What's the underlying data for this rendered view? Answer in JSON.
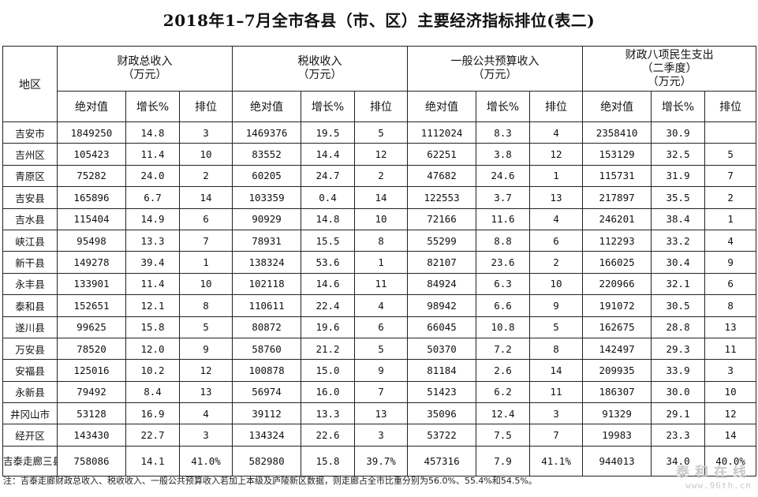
{
  "title": "2018年1–7月全市各县（市、区）主要经济指标排位(表二)",
  "header": {
    "region": "地区",
    "groups": [
      {
        "line1": "财政总收入",
        "line2": "（万元）",
        "line3": ""
      },
      {
        "line1": "税收收入",
        "line2": "（万元）",
        "line3": ""
      },
      {
        "line1": "一般公共预算收入",
        "line2": "（万元）",
        "line3": ""
      },
      {
        "line1": "财政八项民生支出",
        "line2": "（二季度）",
        "line3": "（万元）"
      }
    ],
    "sub": {
      "abs": "绝对值",
      "growth": "增长%",
      "rank": "排位"
    }
  },
  "rows": [
    {
      "region": "吉安市",
      "v": [
        "1849250",
        "14.8",
        "3",
        "1469376",
        "19.5",
        "5",
        "1112024",
        "8.3",
        "4",
        "2358410",
        "30.9",
        ""
      ]
    },
    {
      "region": "吉州区",
      "v": [
        "105423",
        "11.4",
        "10",
        "83552",
        "14.4",
        "12",
        "62251",
        "3.8",
        "12",
        "153129",
        "32.5",
        "5"
      ]
    },
    {
      "region": "青原区",
      "v": [
        "75282",
        "24.0",
        "2",
        "60205",
        "24.7",
        "2",
        "47682",
        "24.6",
        "1",
        "115731",
        "31.9",
        "7"
      ]
    },
    {
      "region": "吉安县",
      "v": [
        "165896",
        "6.7",
        "14",
        "103359",
        "0.4",
        "14",
        "122553",
        "3.7",
        "13",
        "217897",
        "35.5",
        "2"
      ]
    },
    {
      "region": "吉水县",
      "v": [
        "115404",
        "14.9",
        "6",
        "90929",
        "14.8",
        "10",
        "72166",
        "11.6",
        "4",
        "246201",
        "38.4",
        "1"
      ]
    },
    {
      "region": "峡江县",
      "v": [
        "95498",
        "13.3",
        "7",
        "78931",
        "15.5",
        "8",
        "55299",
        "8.8",
        "6",
        "112293",
        "33.2",
        "4"
      ]
    },
    {
      "region": "新干县",
      "v": [
        "149278",
        "39.4",
        "1",
        "138324",
        "53.6",
        "1",
        "82107",
        "23.6",
        "2",
        "166025",
        "30.4",
        "9"
      ]
    },
    {
      "region": "永丰县",
      "v": [
        "133901",
        "11.4",
        "10",
        "102118",
        "14.6",
        "11",
        "84924",
        "6.3",
        "10",
        "220966",
        "32.1",
        "6"
      ]
    },
    {
      "region": "泰和县",
      "v": [
        "152651",
        "12.1",
        "8",
        "110611",
        "22.4",
        "4",
        "98942",
        "6.6",
        "9",
        "191072",
        "30.5",
        "8"
      ]
    },
    {
      "region": "遂川县",
      "v": [
        "99625",
        "15.8",
        "5",
        "80872",
        "19.6",
        "6",
        "66045",
        "10.8",
        "5",
        "162675",
        "28.8",
        "13"
      ]
    },
    {
      "region": "万安县",
      "v": [
        "78520",
        "12.0",
        "9",
        "58760",
        "21.2",
        "5",
        "50370",
        "7.2",
        "8",
        "142497",
        "29.3",
        "11"
      ]
    },
    {
      "region": "安福县",
      "v": [
        "125016",
        "10.2",
        "12",
        "100878",
        "15.0",
        "9",
        "81184",
        "2.6",
        "14",
        "209935",
        "33.9",
        "3"
      ]
    },
    {
      "region": "永新县",
      "v": [
        "79492",
        "8.4",
        "13",
        "56974",
        "16.0",
        "7",
        "51423",
        "6.2",
        "11",
        "186307",
        "30.0",
        "10"
      ]
    },
    {
      "region": "井冈山市",
      "v": [
        "53128",
        "16.9",
        "4",
        "39112",
        "13.3",
        "13",
        "35096",
        "12.4",
        "3",
        "91329",
        "29.1",
        "12"
      ]
    },
    {
      "region": "经开区",
      "v": [
        "143430",
        "22.7",
        "3",
        "134324",
        "22.6",
        "3",
        "53722",
        "7.5",
        "7",
        "19983",
        "23.3",
        "14"
      ]
    }
  ],
  "total": {
    "region": "吉泰走廊三县三区合计",
    "v": [
      "758086",
      "14.1",
      "41.0%",
      "582980",
      "15.8",
      "39.7%",
      "457316",
      "7.9",
      "41.1%",
      "944013",
      "34.0",
      "40.0%"
    ]
  },
  "note": "注：吉泰走廊财政总收入、税收收入、一般公共预算收入若加上本级及庐陵新区数据，则走廊占全市比重分别为56.0%、55.4%和54.5%。",
  "watermark": {
    "name": "泰和在线",
    "url": "www.96th.cn"
  }
}
